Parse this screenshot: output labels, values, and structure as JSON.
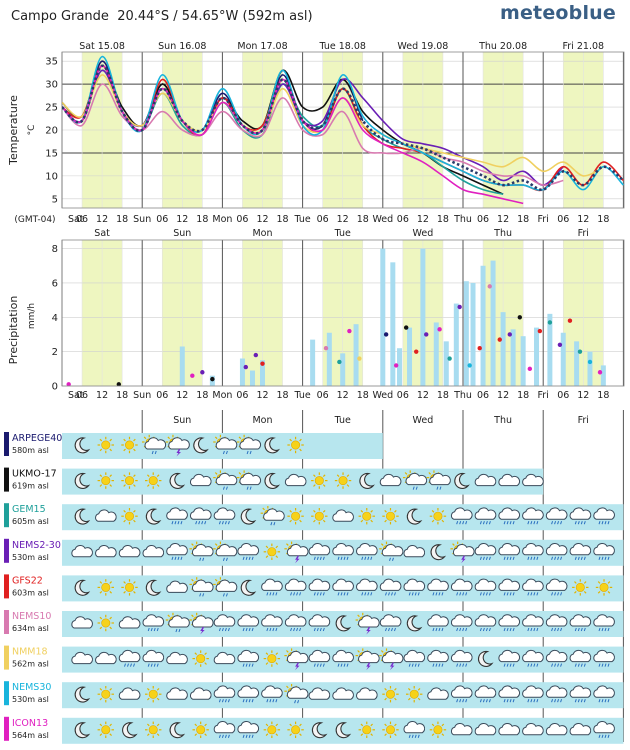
{
  "header": {
    "location": "Campo Grande",
    "coords": "20.44°S / 54.65°W (592m asl)",
    "brand": "meteoblue"
  },
  "colors": {
    "daylight": "#eef6c0",
    "precip_bar": "#a8dcf0",
    "grid": "#cfcfcf",
    "day_line": "#555555",
    "bg_bar": "#b7e6ee"
  },
  "time": {
    "timezone": "(GMT-04)",
    "start_label": "Sat 15.08 00:00",
    "days_top": [
      "Sat 15.08",
      "Sun 16.08",
      "Mon 17.08",
      "Tue 18.08",
      "Wed 19.08",
      "Thu 20.08",
      "Fri 21.08"
    ],
    "days_short": [
      "Sat",
      "Sun",
      "Mon",
      "Tue",
      "Wed",
      "Thu",
      "Fri"
    ],
    "hour_ticks": [
      "06",
      "12",
      "18"
    ]
  },
  "chart_data": [
    {
      "type": "line",
      "title": "Temperature",
      "ylabel": "Temperature",
      "yunit": "°C",
      "ylim": [
        3,
        37
      ],
      "yticks": [
        5,
        10,
        15,
        20,
        25,
        30,
        35
      ],
      "x_unit": "hours since Sat 15.08 00:00",
      "x": [
        0,
        6,
        12,
        18,
        24,
        30,
        36,
        42,
        48,
        54,
        60,
        66,
        72,
        78,
        84,
        90,
        96,
        102,
        108,
        114,
        120,
        126,
        132,
        138,
        144,
        150,
        156,
        162,
        168
      ],
      "series": [
        {
          "name": "ARPEGE40",
          "color": "#1a1a6e",
          "values": [
            25,
            22,
            35,
            24,
            20,
            30,
            22,
            20,
            28,
            21,
            20,
            32,
            22,
            21,
            31,
            22,
            null,
            null,
            null,
            null,
            null,
            null,
            null,
            null,
            null,
            null,
            null,
            null,
            null
          ]
        },
        {
          "name": "UKMO-17",
          "color": "#111111",
          "values": [
            26,
            23,
            34,
            25,
            21,
            30,
            22,
            20,
            27,
            22,
            21,
            33,
            25,
            25,
            31,
            24,
            20,
            17,
            15,
            12,
            10,
            8,
            6,
            null,
            null,
            null,
            null,
            null,
            null
          ]
        },
        {
          "name": "GEM15",
          "color": "#1fa09a",
          "values": [
            25,
            22,
            33,
            24,
            20,
            28,
            21,
            19,
            26,
            20,
            19,
            30,
            23,
            21,
            29,
            21,
            18,
            16,
            15,
            12,
            9,
            7,
            6,
            null,
            null,
            null,
            null,
            null,
            null
          ]
        },
        {
          "name": "NEMS2-30",
          "color": "#6a1fb5",
          "values": [
            25,
            22,
            33,
            24,
            21,
            29,
            22,
            20,
            27,
            21,
            20,
            30,
            22,
            22,
            31,
            27,
            22,
            18,
            17,
            16,
            14,
            12,
            9,
            11,
            8,
            12,
            null,
            null,
            null
          ]
        },
        {
          "name": "GFS22",
          "color": "#e02020",
          "values": [
            25,
            23,
            34,
            24,
            20,
            31,
            22,
            19,
            27,
            21,
            21,
            31,
            22,
            20,
            29,
            21,
            17,
            16,
            15,
            13,
            11,
            9,
            8,
            8,
            7,
            12,
            8,
            13,
            9
          ]
        },
        {
          "name": "NEMS10",
          "color": "#d87ab0",
          "values": [
            25,
            21,
            30,
            23,
            20,
            24,
            20,
            19,
            24,
            20,
            19,
            27,
            20,
            19,
            24,
            16,
            15,
            15,
            16,
            14,
            13,
            11,
            10,
            10,
            8,
            9,
            null,
            null,
            null
          ]
        },
        {
          "name": "NMM18",
          "color": "#f0d060",
          "values": [
            26,
            23,
            32,
            24,
            21,
            28,
            22,
            20,
            26,
            21,
            20,
            29,
            21,
            20,
            27,
            21,
            19,
            17,
            16,
            15,
            14,
            13,
            12,
            14,
            11,
            13,
            10,
            12,
            null
          ]
        },
        {
          "name": "NEMS30",
          "color": "#18b4dc",
          "values": [
            25,
            22,
            36,
            24,
            20,
            32,
            22,
            20,
            29,
            21,
            20,
            33,
            21,
            20,
            32,
            23,
            19,
            17,
            15,
            13,
            11,
            9,
            8,
            8,
            7,
            11,
            7,
            12,
            8
          ]
        },
        {
          "name": "ICON13",
          "color": "#e020c0",
          "values": [
            25,
            22,
            34,
            24,
            20,
            29,
            22,
            19,
            26,
            21,
            20,
            31,
            22,
            20,
            27,
            20,
            17,
            15,
            13,
            10,
            7,
            6,
            5,
            4,
            null,
            null,
            null,
            null,
            null
          ]
        },
        {
          "name": "Mean",
          "color": "#2a3a6a",
          "dashed": true,
          "values": [
            25,
            22,
            34,
            24,
            20,
            29,
            22,
            20,
            27,
            21,
            20,
            31,
            22,
            21,
            29,
            22,
            18,
            17,
            16,
            14,
            12,
            10,
            8,
            9,
            7,
            11,
            8,
            12,
            9
          ]
        }
      ]
    },
    {
      "type": "bar",
      "title": "Precipitation",
      "ylabel": "Precipitation",
      "yunit": "mm/h",
      "ylim": [
        0,
        8.5
      ],
      "yticks": [
        0,
        2,
        4,
        6,
        8
      ],
      "x_unit": "hours since Sat 15.08 00:00",
      "bars": [
        {
          "x": 36,
          "v": 2.3
        },
        {
          "x": 45,
          "v": 0.6
        },
        {
          "x": 54,
          "v": 1.6
        },
        {
          "x": 57,
          "v": 0.9
        },
        {
          "x": 60,
          "v": 1.5
        },
        {
          "x": 75,
          "v": 2.7
        },
        {
          "x": 80,
          "v": 3.1
        },
        {
          "x": 84,
          "v": 1.9
        },
        {
          "x": 88,
          "v": 3.6
        },
        {
          "x": 96,
          "v": 8.0
        },
        {
          "x": 99,
          "v": 7.2
        },
        {
          "x": 101,
          "v": 2.2
        },
        {
          "x": 104,
          "v": 3.4
        },
        {
          "x": 108,
          "v": 8.0
        },
        {
          "x": 112,
          "v": 3.7
        },
        {
          "x": 115,
          "v": 2.6
        },
        {
          "x": 118,
          "v": 4.8
        },
        {
          "x": 121,
          "v": 6.1
        },
        {
          "x": 123,
          "v": 6.0
        },
        {
          "x": 126,
          "v": 7.0
        },
        {
          "x": 129,
          "v": 7.3
        },
        {
          "x": 132,
          "v": 4.3
        },
        {
          "x": 135,
          "v": 3.3
        },
        {
          "x": 138,
          "v": 2.9
        },
        {
          "x": 142,
          "v": 3.4
        },
        {
          "x": 146,
          "v": 4.2
        },
        {
          "x": 150,
          "v": 3.1
        },
        {
          "x": 154,
          "v": 2.6
        },
        {
          "x": 158,
          "v": 2.0
        },
        {
          "x": 162,
          "v": 1.2
        }
      ],
      "dots": [
        {
          "x": 2,
          "v": 0.1,
          "c": "#e020c0"
        },
        {
          "x": 17,
          "v": 0.1,
          "c": "#111111"
        },
        {
          "x": 39,
          "v": 0.6,
          "c": "#e020c0"
        },
        {
          "x": 42,
          "v": 0.8,
          "c": "#6a1fb5"
        },
        {
          "x": 45,
          "v": 0.4,
          "c": "#111111"
        },
        {
          "x": 55,
          "v": 1.1,
          "c": "#6a1fb5"
        },
        {
          "x": 58,
          "v": 1.8,
          "c": "#6a1fb5"
        },
        {
          "x": 60,
          "v": 1.3,
          "c": "#e02020"
        },
        {
          "x": 79,
          "v": 2.2,
          "c": "#d87ab0"
        },
        {
          "x": 83,
          "v": 1.4,
          "c": "#1fa09a"
        },
        {
          "x": 86,
          "v": 3.2,
          "c": "#e020c0"
        },
        {
          "x": 89,
          "v": 1.6,
          "c": "#f0d060"
        },
        {
          "x": 97,
          "v": 3.0,
          "c": "#1a1a6e"
        },
        {
          "x": 100,
          "v": 1.2,
          "c": "#e020c0"
        },
        {
          "x": 103,
          "v": 3.4,
          "c": "#111111"
        },
        {
          "x": 106,
          "v": 2.0,
          "c": "#e02020"
        },
        {
          "x": 109,
          "v": 3.0,
          "c": "#6a1fb5"
        },
        {
          "x": 113,
          "v": 3.3,
          "c": "#e020c0"
        },
        {
          "x": 116,
          "v": 1.6,
          "c": "#1fa09a"
        },
        {
          "x": 119,
          "v": 4.6,
          "c": "#6a1fb5"
        },
        {
          "x": 122,
          "v": 1.2,
          "c": "#18b4dc"
        },
        {
          "x": 125,
          "v": 2.2,
          "c": "#e02020"
        },
        {
          "x": 128,
          "v": 5.8,
          "c": "#d87ab0"
        },
        {
          "x": 131,
          "v": 2.7,
          "c": "#e02020"
        },
        {
          "x": 134,
          "v": 3.0,
          "c": "#6a1fb5"
        },
        {
          "x": 137,
          "v": 4.0,
          "c": "#111111"
        },
        {
          "x": 140,
          "v": 1.0,
          "c": "#e020c0"
        },
        {
          "x": 143,
          "v": 3.2,
          "c": "#e02020"
        },
        {
          "x": 146,
          "v": 3.7,
          "c": "#1fa09a"
        },
        {
          "x": 149,
          "v": 2.4,
          "c": "#6a1fb5"
        },
        {
          "x": 152,
          "v": 3.8,
          "c": "#e02020"
        },
        {
          "x": 155,
          "v": 2.0,
          "c": "#1fa09a"
        },
        {
          "x": 158,
          "v": 1.4,
          "c": "#18b4dc"
        },
        {
          "x": 161,
          "v": 0.8,
          "c": "#e020c0"
        }
      ]
    }
  ],
  "models": [
    {
      "name": "ARPEGE40",
      "alt": "580m asl",
      "color": "#1a1a6e",
      "hours": 96,
      "icons": [
        "moon",
        "sun",
        "sun",
        "sunrain",
        "sunstorm",
        "moon",
        "sunrain",
        "sunrain",
        "moon",
        "sun"
      ]
    },
    {
      "name": "UKMO-17",
      "alt": "619m asl",
      "color": "#111111",
      "hours": 144,
      "icons": [
        "moon",
        "sun",
        "sun",
        "sun",
        "moon",
        "cloud",
        "sunrain",
        "sunrain",
        "moon",
        "cloud",
        "sun",
        "sun",
        "moon",
        "cloud",
        "sunrain",
        "sunrain",
        "moon",
        "cloud",
        "cloud",
        "cloud"
      ]
    },
    {
      "name": "GEM15",
      "alt": "605m asl",
      "color": "#1fa09a",
      "hours": 168,
      "icons": [
        "moon",
        "cloud",
        "sun",
        "moon",
        "rain",
        "rain",
        "rain",
        "moon",
        "sunrain",
        "sun",
        "sun",
        "cloud",
        "sun",
        "sun",
        "moon",
        "sun",
        "rain",
        "rain",
        "rain",
        "rain",
        "rain",
        "rain",
        "rain"
      ]
    },
    {
      "name": "NEMS2-30",
      "alt": "530m asl",
      "color": "#6a1fb5",
      "hours": 168,
      "icons": [
        "cloud",
        "cloud",
        "cloud",
        "cloud",
        "rain",
        "sunrain",
        "sunrain",
        "rain",
        "sun",
        "sunstorm",
        "rain",
        "rain",
        "rain",
        "sunrain",
        "cloud",
        "moon",
        "sunstorm",
        "rain",
        "rain",
        "rain",
        "rain",
        "rain",
        "rain"
      ]
    },
    {
      "name": "GFS22",
      "alt": "603m asl",
      "color": "#e02020",
      "hours": 168,
      "icons": [
        "moon",
        "sun",
        "sun",
        "moon",
        "cloud",
        "sunrain",
        "sunrain",
        "moon",
        "rain",
        "rain",
        "rain",
        "rain",
        "rain",
        "rain",
        "rain",
        "rain",
        "rain",
        "rain",
        "rain",
        "rain",
        "rain",
        "sun",
        "sun"
      ]
    },
    {
      "name": "NEMS10",
      "alt": "634m asl",
      "color": "#d87ab0",
      "hours": 168,
      "icons": [
        "cloud",
        "sun",
        "cloud",
        "rain",
        "sunrain",
        "sunstorm",
        "rain",
        "rain",
        "rain",
        "rain",
        "rain",
        "moon",
        "sunstorm",
        "rain",
        "moon",
        "rain",
        "rain",
        "rain",
        "rain",
        "rain",
        "rain",
        "rain",
        "rain"
      ]
    },
    {
      "name": "NMM18",
      "alt": "562m asl",
      "color": "#f0d060",
      "hours": 168,
      "icons": [
        "cloud",
        "cloud",
        "rain",
        "rain",
        "cloud",
        "sun",
        "cloud",
        "rain",
        "sun",
        "sunstorm",
        "rain",
        "rain",
        "sunstorm",
        "sunstorm",
        "rain",
        "rain",
        "rain",
        "moon",
        "rain",
        "rain",
        "rain",
        "rain",
        "rain"
      ]
    },
    {
      "name": "NEMS30",
      "alt": "530m asl",
      "color": "#18b4dc",
      "hours": 168,
      "icons": [
        "moon",
        "sun",
        "cloud",
        "sun",
        "cloud",
        "cloud",
        "rain",
        "rain",
        "rain",
        "sunrain",
        "cloud",
        "cloud",
        "cloud",
        "sun",
        "sun",
        "cloud",
        "rain",
        "rain",
        "rain",
        "rain",
        "rain",
        "rain",
        "rain"
      ]
    },
    {
      "name": "ICON13",
      "alt": "564m asl",
      "color": "#e020c0",
      "hours": 168,
      "icons": [
        "moon",
        "sun",
        "moon",
        "sun",
        "moon",
        "sun",
        "rain",
        "rain",
        "sun",
        "sun",
        "moon",
        "moon",
        "sun",
        "sun",
        "rain",
        "sun",
        "cloud",
        "cloud",
        "cloud",
        "cloud",
        "cloud",
        "cloud",
        "rain"
      ]
    }
  ]
}
